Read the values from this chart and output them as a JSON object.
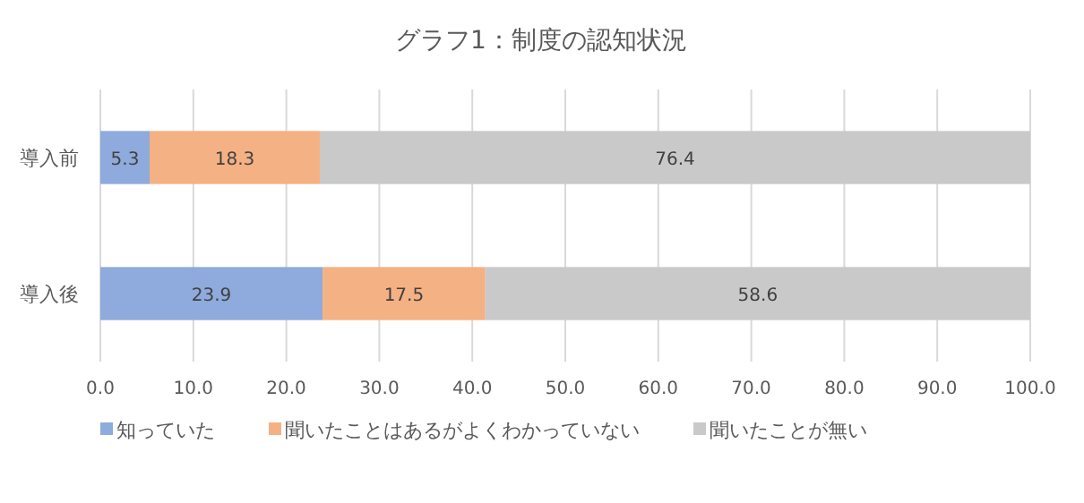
{
  "chart_data": {
    "type": "bar",
    "orientation": "horizontal",
    "stacked": true,
    "title": "グラフ1：制度の認知状況",
    "categories": [
      "導入前",
      "導入後"
    ],
    "series": [
      {
        "name": "知っていた",
        "color": "#8faadc",
        "values": [
          5.3,
          23.9
        ]
      },
      {
        "name": "聞いたことはあるがよくわかっていない",
        "color": "#f4b183",
        "values": [
          18.3,
          17.5
        ]
      },
      {
        "name": "聞いたことが無い",
        "color": "#c9c9c9",
        "values": [
          76.4,
          58.6
        ]
      }
    ],
    "xlim": [
      0,
      100
    ],
    "xticks": [
      {
        "value": 0,
        "label": "0.0"
      },
      {
        "value": 10,
        "label": "10.0"
      },
      {
        "value": 20,
        "label": "20.0"
      },
      {
        "value": 30,
        "label": "30.0"
      },
      {
        "value": 40,
        "label": "40.0"
      },
      {
        "value": 50,
        "label": "50.0"
      },
      {
        "value": 60,
        "label": "60.0"
      },
      {
        "value": 70,
        "label": "70.0"
      },
      {
        "value": 80,
        "label": "80.0"
      },
      {
        "value": 90,
        "label": "90.0"
      },
      {
        "value": 100,
        "label": "100.0"
      }
    ],
    "grid": "x",
    "data_labels": true,
    "legend": "bottom"
  }
}
